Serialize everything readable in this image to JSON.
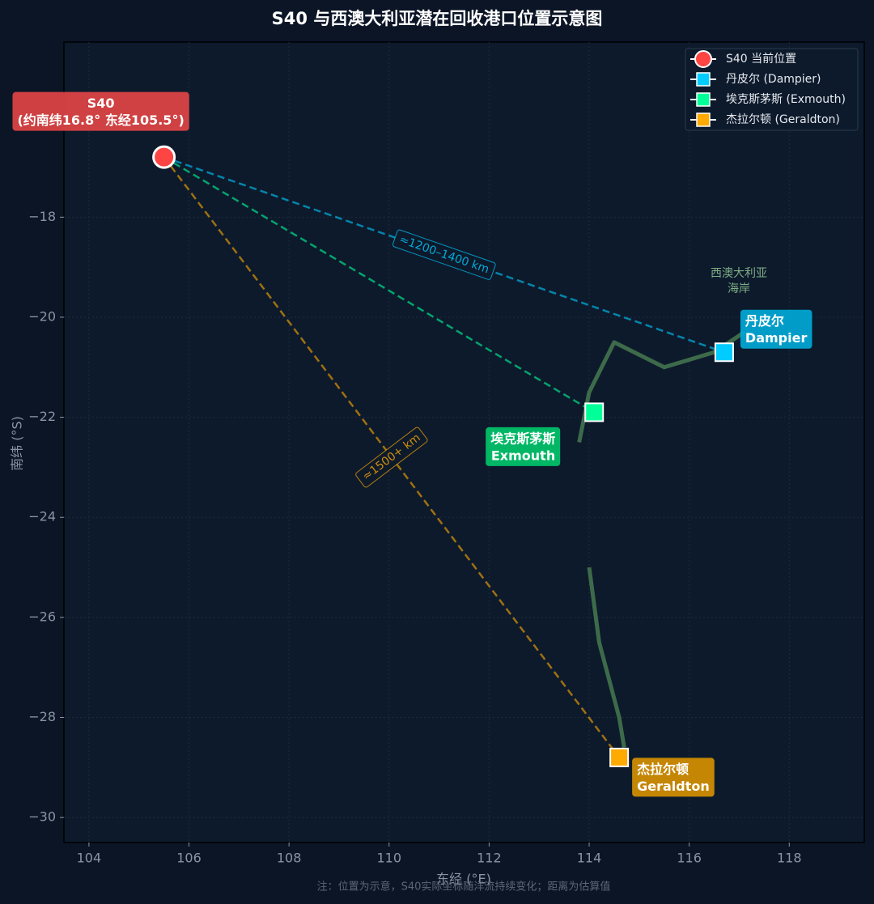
{
  "chart_data": {
    "type": "scatter",
    "title": "S40 与西澳大利亚潜在回收港口位置示意图",
    "x_label": "东经 (°E)",
    "y_label": "南纬 (°S)",
    "xlim": [
      103.5,
      119.5
    ],
    "ylim": [
      -30.5,
      -14.5
    ],
    "xticks": [
      104,
      106,
      108,
      110,
      112,
      114,
      116,
      118
    ],
    "yticks": [
      {
        "value": -18,
        "label": "−18"
      },
      {
        "value": -20,
        "label": "−20"
      },
      {
        "value": -22,
        "label": "−22"
      },
      {
        "value": -24,
        "label": "−24"
      },
      {
        "value": -26,
        "label": "−26"
      },
      {
        "value": -28,
        "label": "−28"
      },
      {
        "value": -30,
        "label": "−30"
      }
    ],
    "grid": true,
    "legend": "upper right",
    "series": [
      {
        "name": "S40 当前位置",
        "color": "#ff4444",
        "marker": "circle",
        "x": [
          105.5
        ],
        "y": [
          -16.8
        ],
        "label_lines": [
          "S40",
          "(约南纬16.8° 东经105.5°)"
        ],
        "label_color": "#e04444"
      },
      {
        "name": "丹皮尔 (Dampier)",
        "color": "#00ccff",
        "marker": "square",
        "x": [
          116.7
        ],
        "y": [
          -20.7
        ],
        "label_lines": [
          "丹皮尔",
          "Dampier"
        ],
        "label_color": "#00a8d6"
      },
      {
        "name": "埃克斯茅斯 (Exmouth)",
        "color": "#00ff99",
        "marker": "square",
        "x": [
          114.1
        ],
        "y": [
          -21.9
        ],
        "label_lines": [
          "埃克斯茅斯",
          "Exmouth"
        ],
        "label_color": "#00c46a"
      },
      {
        "name": "杰拉尔顿 (Geraldton)",
        "color": "#ffaa00",
        "marker": "square",
        "x": [
          114.6
        ],
        "y": [
          -28.8
        ],
        "label_lines": [
          "杰拉尔顿",
          "Geraldton"
        ],
        "label_color": "#d48f00"
      }
    ],
    "distance_labels": [
      "≈1200–1400 km",
      "≈1500+ km"
    ],
    "coastline_color": "#3d6b4a",
    "coastline": [
      {
        "x": [
          113.8,
          114.0,
          114.5,
          115.5,
          116.5,
          117.1
        ],
        "y": [
          -22.5,
          -21.5,
          -20.5,
          -21.0,
          -20.7,
          -20.3
        ]
      },
      {
        "x": [
          114.0,
          114.2,
          114.6,
          114.7
        ],
        "y": [
          -25.0,
          -26.5,
          -28.0,
          -28.6
        ]
      }
    ],
    "coast_label": [
      "西澳大利亚",
      "海岸"
    ],
    "footnote": "注：位置为示意，S40实际坐标随洋流持续变化；距离为估算值"
  }
}
